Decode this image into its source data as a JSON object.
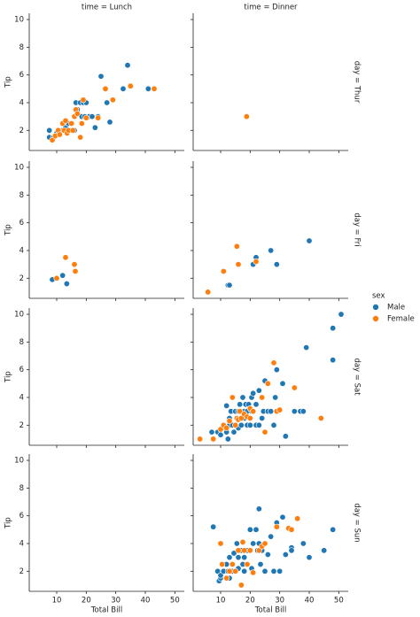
{
  "chart_data": {
    "type": "scatter",
    "col_titles": [
      "time = Lunch",
      "time = Dinner"
    ],
    "row_titles": [
      "day = Thur",
      "day = Fri",
      "day = Sat",
      "day = Sun"
    ],
    "xlabel": "Total Bill",
    "ylabel": "Tip",
    "xlim": [
      0.7,
      53.2
    ],
    "ylim": [
      0.55,
      10.45
    ],
    "xticks": [
      10,
      20,
      30,
      40,
      50
    ],
    "yticks": [
      2,
      4,
      6,
      8,
      10
    ],
    "legend_title": "sex",
    "legend_position": "right",
    "series": [
      {
        "name": "Male",
        "color": "#1f77b4"
      },
      {
        "name": "Female",
        "color": "#ff7f0e"
      }
    ],
    "panels": [
      {
        "row": 0,
        "col": 0,
        "points": [
          {
            "x": [
              7.5,
              7.5,
              9,
              10,
              10.5,
              12,
              13,
              14,
              15,
              16,
              16.5,
              17,
              18,
              18.5,
              19,
              19.5,
              20,
              21,
              22,
              23,
              24,
              25,
              27,
              28,
              32.5,
              34,
              41
            ],
            "y": [
              2,
              1.5,
              1.5,
              1.8,
              2,
              2,
              2.2,
              2.5,
              2,
              2,
              4,
              3.5,
              4,
              3,
              4,
              3,
              4,
              3,
              3,
              2.2,
              3,
              5.9,
              4,
              2.6,
              5,
              6.7,
              5
            ]
          },
          {
            "x": [
              8.5,
              9.5,
              10.5,
              11,
              12,
              12.5,
              13,
              13.5,
              14,
              15,
              15.5,
              16,
              16.5,
              17,
              18,
              18.5,
              19,
              20,
              24,
              26.5,
              29,
              35,
              43
            ],
            "y": [
              1.3,
              1.6,
              2,
              1.7,
              2.5,
              2,
              2.7,
              1.8,
              2,
              2.5,
              2,
              3,
              3.5,
              3.2,
              1.5,
              2.5,
              4.2,
              2.9,
              2.9,
              5,
              4.2,
              5.2,
              5
            ]
          }
        ]
      },
      {
        "row": 0,
        "col": 1,
        "points": [
          {
            "x": [],
            "y": []
          },
          {
            "x": [
              18.8
            ],
            "y": [
              3
            ]
          }
        ]
      },
      {
        "row": 1,
        "col": 0,
        "points": [
          {
            "x": [
              8.5,
              12,
              13.4
            ],
            "y": [
              1.9,
              2.2,
              1.6
            ]
          },
          {
            "x": [
              10,
              13,
              16,
              16.3
            ],
            "y": [
              2,
              3.5,
              3,
              2.5
            ]
          }
        ]
      },
      {
        "row": 1,
        "col": 1,
        "points": [
          {
            "x": [
              12.5,
              13,
              21,
              22,
              27,
              29,
              40
            ],
            "y": [
              1.5,
              1.5,
              3,
              3.5,
              4,
              3,
              4.7
            ]
          },
          {
            "x": [
              5.7,
              11,
              15.5,
              16,
              22
            ],
            "y": [
              1,
              2.5,
              4.3,
              3,
              3.2
            ]
          }
        ]
      },
      {
        "row": 2,
        "col": 0,
        "points": [
          {
            "x": [],
            "y": []
          },
          {
            "x": [],
            "y": []
          }
        ]
      },
      {
        "row": 2,
        "col": 1,
        "points": [
          {
            "x": [
              7,
              9,
              10,
              10.5,
              11,
              12,
              12,
              12.5,
              13,
              13,
              13.5,
              14,
              14.5,
              15,
              15,
              15.5,
              16,
              16,
              16.5,
              17,
              17,
              17.5,
              18,
              18,
              18.5,
              19,
              19,
              19.5,
              20,
              20.5,
              20.5,
              21,
              22,
              22,
              23,
              23,
              24,
              24.5,
              25,
              26,
              27,
              28,
              28.5,
              29,
              31,
              32,
              35,
              37,
              38,
              39,
              48,
              48,
              50.8
            ],
            "y": [
              1.5,
              1.5,
              1.3,
              1.8,
              2,
              1.5,
              3.4,
              1,
              2,
              2.5,
              3,
              2,
              1.5,
              3,
              2,
              2.5,
              3,
              1.8,
              3.5,
              2,
              3,
              4,
              3,
              2.5,
              3.5,
              2,
              3,
              3.5,
              2,
              3,
              4,
              4.3,
              2,
              3.5,
              2,
              4.5,
              2.5,
              3,
              5.2,
              3,
              3,
              2,
              4,
              6,
              5,
              1.2,
              3,
              3,
              3,
              7.6,
              9,
              6.7,
              10
            ]
          },
          {
            "x": [
              3,
              7.5,
              10,
              11,
              12,
              13,
              14,
              15,
              15.5,
              16,
              16.5,
              17,
              18,
              19,
              20,
              20,
              21,
              24,
              25,
              26,
              28,
              29,
              30,
              35,
              44
            ],
            "y": [
              1,
              1,
              1.7,
              2,
              1.8,
              2.3,
              4,
              2,
              2.5,
              2.4,
              3,
              2.5,
              2.8,
              2.6,
              3.2,
              2.5,
              3,
              4,
              1.5,
              5,
              6.5,
              3,
              3.1,
              4.7,
              2.5
            ]
          }
        ]
      },
      {
        "row": 3,
        "col": 0,
        "points": [
          {
            "x": [],
            "y": []
          },
          {
            "x": [],
            "y": []
          }
        ]
      },
      {
        "row": 3,
        "col": 1,
        "points": [
          {
            "x": [
              7.5,
              9,
              9.5,
              10,
              10,
              11,
              12,
              12.5,
              13,
              13,
              13.5,
              14,
              14.5,
              15,
              15.5,
              16,
              16,
              17,
              17.5,
              18,
              18,
              19,
              20,
              20.5,
              21,
              22,
              22.5,
              23,
              23,
              23.5,
              24,
              25,
              26,
              27,
              28,
              29,
              30,
              31,
              32,
              34,
              34,
              38,
              40,
              45,
              48
            ],
            "y": [
              5.2,
              2,
              1.3,
              1.5,
              1.7,
              2,
              2.5,
              2,
              3,
              1.5,
              2,
              2,
              3.3,
              2,
              4,
              3,
              2.2,
              3.5,
              2.5,
              2,
              3,
              3.5,
              5,
              2.2,
              4,
              5,
              3.5,
              6.5,
              4,
              2.5,
              3.5,
              2,
              3.2,
              4.5,
              2,
              5.5,
              2,
              5.9,
              3.2,
              3.7,
              3.5,
              4,
              3,
              3.5,
              5
            ]
          },
          {
            "x": [
              10,
              10.5,
              12,
              13,
              14,
              15,
              16,
              17,
              17.5,
              18,
              19,
              20,
              21,
              23,
              24,
              25,
              29,
              33,
              34,
              36
            ],
            "y": [
              4,
              2.5,
              1.5,
              2,
              2.5,
              2,
              3.5,
              1,
              4.1,
              3.5,
              2.5,
              3.5,
              1.9,
              3.5,
              3.8,
              4,
              5.2,
              5.1,
              5,
              5.8
            ]
          }
        ]
      }
    ]
  }
}
